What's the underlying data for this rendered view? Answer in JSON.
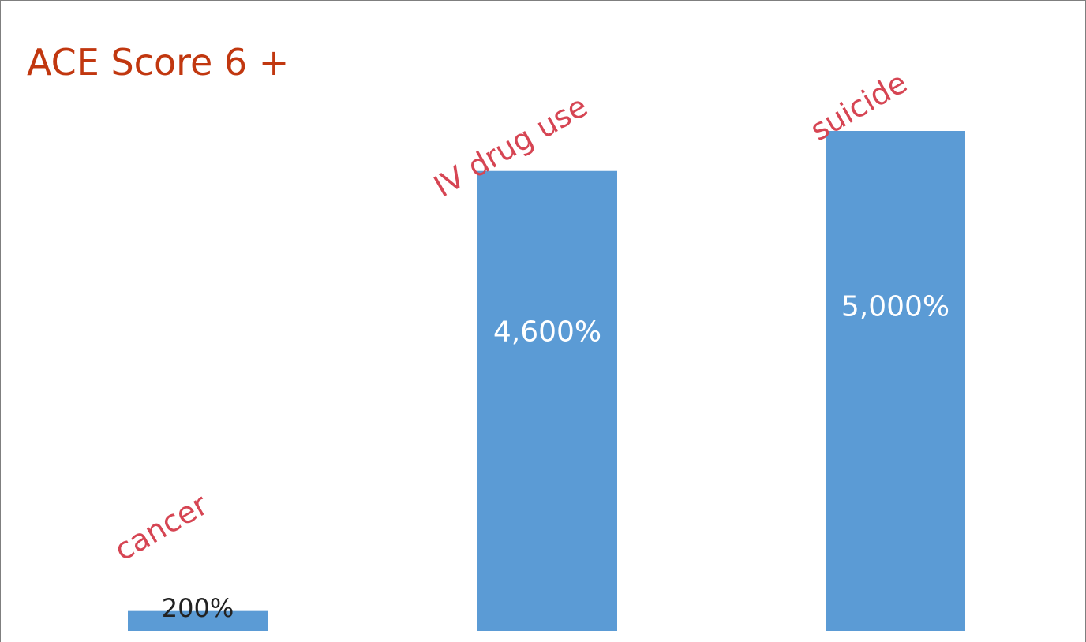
{
  "chart_data": {
    "type": "bar",
    "title": "ACE Score 6 +",
    "categories": [
      "cancer",
      "IV drug use",
      "suicide"
    ],
    "values": [
      200,
      4600,
      5000
    ],
    "value_labels": [
      "200%",
      "4,600%",
      "5,000%"
    ],
    "xlabel": "",
    "ylabel": "",
    "ylim": [
      0,
      5000
    ],
    "grid": false,
    "legend": "none",
    "colors": {
      "bar": "#5b9bd5",
      "category_label": "#d64553",
      "title": "#c1370f",
      "value_label_inside": "#ffffff",
      "value_label_outside": "#222222",
      "frame": "#7f7f7f"
    }
  }
}
